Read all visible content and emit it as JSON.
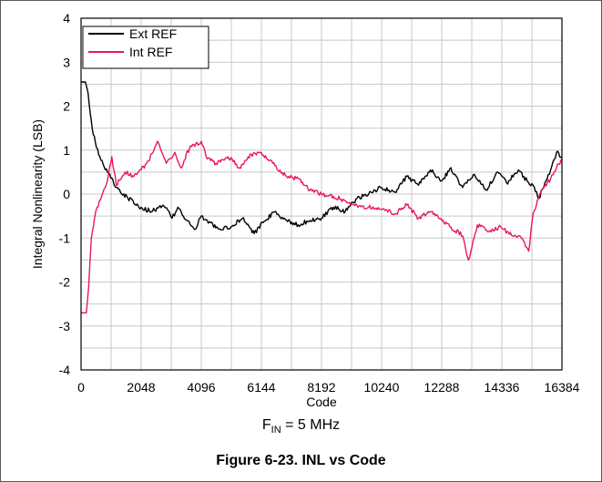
{
  "chart_data": {
    "type": "line",
    "xlabel": "Code",
    "ylabel": "Integral Nonlinearity (LSB)",
    "xlim": [
      0,
      16384
    ],
    "ylim": [
      -4,
      4
    ],
    "x_ticks": [
      0,
      2048,
      4096,
      6144,
      8192,
      10240,
      12288,
      14336,
      16384
    ],
    "y_ticks": [
      -4,
      -3,
      -2,
      -1,
      0,
      1,
      2,
      3,
      4
    ],
    "grid": true,
    "legend_position": "top-left",
    "series": [
      {
        "name": "Ext REF",
        "color": "#000000",
        "x": [
          0,
          150,
          240,
          380,
          600,
          900,
          1200,
          1600,
          2048,
          2400,
          2800,
          3100,
          3300,
          3600,
          3900,
          4096,
          4300,
          4700,
          5100,
          5500,
          5900,
          6200,
          6600,
          7000,
          7400,
          7800,
          8192,
          8600,
          9000,
          9400,
          9800,
          10240,
          10700,
          11100,
          11500,
          11900,
          12288,
          12600,
          13000,
          13400,
          13800,
          14200,
          14500,
          14900,
          15200,
          15400,
          15600,
          15800,
          16000,
          16200,
          16384
        ],
        "values": [
          2.55,
          2.55,
          2.3,
          1.5,
          0.9,
          0.5,
          0.15,
          -0.1,
          -0.3,
          -0.4,
          -0.25,
          -0.55,
          -0.3,
          -0.6,
          -0.8,
          -0.5,
          -0.6,
          -0.8,
          -0.75,
          -0.55,
          -0.9,
          -0.65,
          -0.4,
          -0.6,
          -0.7,
          -0.6,
          -0.55,
          -0.3,
          -0.4,
          -0.1,
          0.0,
          0.15,
          0.05,
          0.4,
          0.2,
          0.55,
          0.3,
          0.6,
          0.15,
          0.45,
          0.1,
          0.5,
          0.25,
          0.55,
          0.3,
          0.2,
          -0.1,
          0.25,
          0.55,
          0.95,
          0.85
        ]
      },
      {
        "name": "Int REF",
        "color": "#e8175d",
        "x": [
          0,
          180,
          260,
          350,
          500,
          700,
          900,
          1050,
          1200,
          1500,
          1800,
          2048,
          2300,
          2600,
          2900,
          3200,
          3400,
          3700,
          4096,
          4300,
          4600,
          5000,
          5400,
          5800,
          6144,
          6600,
          7000,
          7400,
          7800,
          8192,
          8600,
          9000,
          9400,
          9800,
          10240,
          10700,
          11100,
          11500,
          11900,
          12288,
          12600,
          13000,
          13200,
          13500,
          13900,
          14300,
          14700,
          15000,
          15250,
          15400,
          15700,
          16000,
          16200,
          16384
        ],
        "values": [
          -2.7,
          -2.7,
          -2.1,
          -1.0,
          -0.4,
          -0.05,
          0.3,
          0.85,
          0.2,
          0.5,
          0.4,
          0.55,
          0.75,
          1.2,
          0.7,
          0.95,
          0.6,
          1.05,
          1.2,
          0.8,
          0.7,
          0.85,
          0.6,
          0.9,
          0.95,
          0.65,
          0.4,
          0.35,
          0.1,
          0.0,
          -0.05,
          -0.15,
          -0.25,
          -0.3,
          -0.35,
          -0.45,
          -0.25,
          -0.55,
          -0.4,
          -0.6,
          -0.75,
          -0.95,
          -1.5,
          -0.7,
          -0.85,
          -0.75,
          -0.95,
          -1.0,
          -1.3,
          -0.45,
          0.1,
          0.35,
          0.6,
          0.8
        ]
      }
    ]
  },
  "annotations": {
    "condition_prefix": "F",
    "condition_subscript": "IN",
    "condition_suffix": " = 5 MHz"
  },
  "caption": "Figure 6-23. INL vs Code"
}
